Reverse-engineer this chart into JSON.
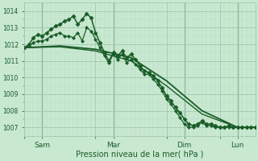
{
  "xlabel": "Pression niveau de la mer( hPa )",
  "bg_color": "#c8e8d0",
  "grid_major_color": "#a0c8b0",
  "grid_minor_color": "#b8dcc4",
  "line_color": "#1a5c28",
  "ylim": [
    1006.5,
    1014.5
  ],
  "yticks": [
    1007,
    1008,
    1009,
    1010,
    1011,
    1012,
    1013,
    1014
  ],
  "xlim": [
    0,
    312
  ],
  "xtick_labels": [
    "",
    "Sam",
    "",
    "Mar",
    "",
    "Dim",
    "",
    "Lun"
  ],
  "xtick_positions": [
    0,
    24,
    96,
    120,
    192,
    216,
    264,
    288
  ],
  "vline_positions": [
    24,
    120,
    216,
    288
  ],
  "series": [
    {
      "x": [
        0,
        6,
        12,
        18,
        24,
        30,
        36,
        42,
        48,
        54,
        60,
        66,
        72,
        78,
        84,
        90,
        96,
        102,
        108,
        114,
        120,
        126,
        132,
        138,
        144,
        150,
        156,
        162,
        168,
        174,
        180,
        186,
        192,
        198,
        204,
        210,
        216,
        222,
        228,
        234,
        240,
        246,
        252,
        258,
        264,
        270,
        276,
        282,
        288,
        294,
        300,
        306,
        312
      ],
      "y": [
        1011.8,
        1012.0,
        1012.4,
        1012.6,
        1012.5,
        1012.7,
        1012.9,
        1013.1,
        1013.2,
        1013.4,
        1013.5,
        1013.7,
        1013.2,
        1013.5,
        1013.85,
        1013.6,
        1012.7,
        1012.1,
        1011.5,
        1011.0,
        1011.5,
        1011.3,
        1011.6,
        1011.2,
        1011.4,
        1011.1,
        1010.7,
        1010.4,
        1010.3,
        1010.1,
        1009.8,
        1009.4,
        1008.9,
        1008.6,
        1008.2,
        1007.9,
        1007.5,
        1007.2,
        1007.1,
        1007.2,
        1007.4,
        1007.2,
        1007.2,
        1007.1,
        1007.0,
        1007.0,
        1007.1,
        1007.0,
        1007.0,
        1007.0,
        1007.0,
        1007.0,
        1007.0
      ],
      "marker": "D",
      "markersize": 2.5,
      "linewidth": 1.1,
      "zorder": 4
    },
    {
      "x": [
        0,
        6,
        12,
        18,
        24,
        30,
        36,
        42,
        48,
        54,
        60,
        66,
        72,
        78,
        84,
        90,
        96,
        102,
        108,
        114,
        120,
        126,
        132,
        138,
        144,
        150,
        156,
        162,
        168,
        174,
        180,
        186,
        192,
        198,
        204,
        210,
        216,
        222,
        228,
        234,
        240,
        246,
        252,
        258,
        264,
        270,
        276,
        282,
        288,
        294,
        300,
        306,
        312
      ],
      "y": [
        1011.8,
        1011.9,
        1012.1,
        1012.2,
        1012.2,
        1012.3,
        1012.5,
        1012.6,
        1012.7,
        1012.5,
        1012.5,
        1012.4,
        1012.7,
        1012.2,
        1013.0,
        1012.8,
        1012.3,
        1011.8,
        1011.3,
        1010.9,
        1011.4,
        1011.1,
        1011.4,
        1010.9,
        1011.1,
        1010.8,
        1010.5,
        1010.2,
        1010.2,
        1009.9,
        1009.6,
        1009.2,
        1008.7,
        1008.4,
        1008.0,
        1007.6,
        1007.2,
        1007.0,
        1007.0,
        1007.1,
        1007.3,
        1007.1,
        1007.1,
        1007.0,
        1007.0,
        1007.0,
        1007.0,
        1007.0,
        1007.0,
        1007.0,
        1007.0,
        1007.0,
        1007.0
      ],
      "marker": "D",
      "markersize": 2.0,
      "linewidth": 0.9,
      "zorder": 4
    },
    {
      "x": [
        0,
        48,
        96,
        144,
        192,
        240,
        288,
        312
      ],
      "y": [
        1011.8,
        1011.9,
        1011.7,
        1011.2,
        1009.8,
        1008.0,
        1007.0,
        1007.0
      ],
      "marker": null,
      "linewidth": 1.3,
      "zorder": 2
    },
    {
      "x": [
        0,
        48,
        96,
        144,
        192,
        240,
        288,
        312
      ],
      "y": [
        1011.8,
        1011.85,
        1011.6,
        1011.0,
        1009.5,
        1007.8,
        1007.0,
        1007.0
      ],
      "marker": null,
      "linewidth": 1.0,
      "zorder": 2
    }
  ]
}
